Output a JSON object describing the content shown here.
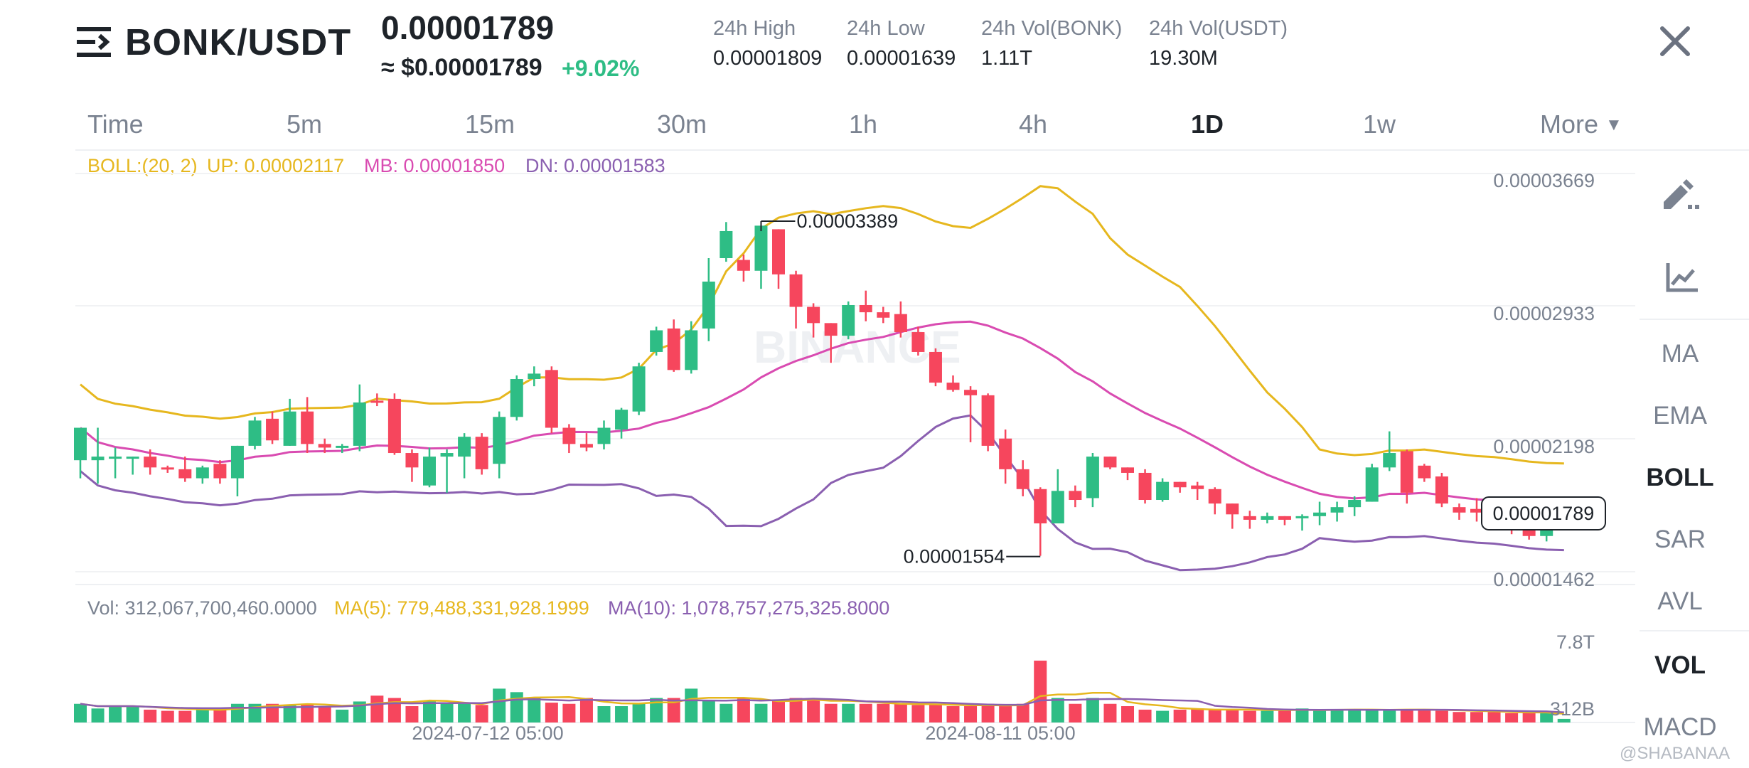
{
  "header": {
    "pair": "BONK/USDT",
    "last_price": "0.00001789",
    "approx_usd": "≈ $0.00001789",
    "change_pct": "+9.02%",
    "stats": [
      {
        "label": "24h High",
        "value": "0.00001809"
      },
      {
        "label": "24h Low",
        "value": "0.00001639"
      },
      {
        "label": "24h Vol(BONK)",
        "value": "1.11T"
      },
      {
        "label": "24h Vol(USDT)",
        "value": "19.30M"
      }
    ]
  },
  "timeframes": [
    "Time",
    "5m",
    "15m",
    "30m",
    "1h",
    "4h",
    "1D",
    "1w"
  ],
  "active_timeframe": "1D",
  "more_label": "More",
  "boll_legend": {
    "params": "BOLL:(20, 2)",
    "up": "UP: 0.00002117",
    "mb": "MB: 0.00001850",
    "dn": "DN: 0.00001583"
  },
  "vol_legend": {
    "vol": "Vol: 312,067,700,460.0000",
    "ma5": "MA(5): 779,488,331,928.1999",
    "ma10": "MA(10): 1,078,757,275,325.8000"
  },
  "side_indicators": [
    "MA",
    "EMA",
    "BOLL",
    "SAR",
    "AVL",
    "VOL",
    "MACD"
  ],
  "active_indicators": [
    "BOLL",
    "VOL"
  ],
  "watermark": "BINANCE",
  "credit": "@SHABANAA",
  "colors": {
    "up": "#2ebd85",
    "down": "#f6465d",
    "boll_up": "#e6b71e",
    "boll_mb": "#d94bb1",
    "boll_dn": "#8a5fb0",
    "ma5": "#e6b71e",
    "ma10": "#8a5fb0"
  },
  "chart_data": {
    "type": "candlestick",
    "y_ticks": [
      "0.00003669",
      "0.00002933",
      "0.00002198",
      "0.00001462"
    ],
    "ylim": [
      1.462e-05,
      3.669e-05
    ],
    "x_ticks": [
      "2024-07-12 05:00",
      "2024-08-11 05:00"
    ],
    "high_annotation": "0.00003389",
    "low_annotation": "0.00001554",
    "last_price_label": "0.00001789",
    "vol_ticks": [
      "7.8T",
      "312B"
    ],
    "vol_ylim": [
      0,
      7800000000000.0
    ],
    "candles": [
      [
        2.08,
        2.26,
        1.98,
        2.26
      ],
      [
        2.08,
        2.1,
        1.95,
        2.26
      ],
      [
        2.09,
        2.1,
        1.98,
        2.15
      ],
      [
        2.1,
        2.1,
        2.0,
        2.1
      ],
      [
        2.1,
        2.04,
        2.0,
        2.14
      ],
      [
        2.04,
        2.03,
        2.01,
        2.05
      ],
      [
        2.03,
        1.98,
        1.96,
        2.1
      ],
      [
        1.98,
        2.04,
        1.95,
        2.05
      ],
      [
        2.06,
        1.98,
        1.95,
        2.08
      ],
      [
        1.98,
        2.16,
        1.88,
        2.16
      ],
      [
        2.16,
        2.3,
        2.14,
        2.32
      ],
      [
        2.31,
        2.19,
        2.17,
        2.35
      ],
      [
        2.16,
        2.35,
        2.16,
        2.42
      ],
      [
        2.35,
        2.17,
        2.12,
        2.43
      ],
      [
        2.17,
        2.15,
        2.12,
        2.2
      ],
      [
        2.15,
        2.16,
        2.12,
        2.17
      ],
      [
        2.16,
        2.4,
        2.13,
        2.5
      ],
      [
        2.41,
        2.4,
        2.38,
        2.45
      ],
      [
        2.42,
        2.12,
        2.11,
        2.45
      ],
      [
        2.12,
        2.04,
        1.96,
        2.14
      ],
      [
        1.94,
        2.1,
        1.93,
        2.15
      ],
      [
        2.1,
        2.12,
        1.9,
        2.14
      ],
      [
        2.1,
        2.21,
        1.98,
        2.23
      ],
      [
        2.21,
        2.03,
        2.0,
        2.23
      ],
      [
        2.06,
        2.32,
        1.98,
        2.35
      ],
      [
        2.32,
        2.53,
        2.3,
        2.55
      ],
      [
        2.53,
        2.56,
        2.49,
        2.6
      ],
      [
        2.58,
        2.26,
        2.23,
        2.6
      ],
      [
        2.26,
        2.17,
        2.12,
        2.28
      ],
      [
        2.17,
        2.15,
        2.13,
        2.23
      ],
      [
        2.17,
        2.26,
        2.14,
        2.3
      ],
      [
        2.25,
        2.36,
        2.2,
        2.37
      ],
      [
        2.35,
        2.6,
        2.33,
        2.62
      ],
      [
        2.68,
        2.8,
        2.66,
        2.82
      ],
      [
        2.81,
        2.58,
        2.57,
        2.86
      ],
      [
        2.58,
        2.8,
        2.56,
        2.85
      ],
      [
        2.81,
        3.07,
        2.74,
        3.2
      ],
      [
        3.2,
        3.35,
        3.18,
        3.4
      ],
      [
        3.19,
        3.13,
        3.07,
        3.22
      ],
      [
        3.13,
        3.38,
        3.03,
        3.38
      ],
      [
        3.36,
        3.11,
        3.03,
        3.36
      ],
      [
        3.11,
        2.93,
        2.81,
        3.13
      ],
      [
        2.93,
        2.84,
        2.76,
        2.95
      ],
      [
        2.84,
        2.77,
        2.62,
        2.84
      ],
      [
        2.77,
        2.94,
        2.75,
        2.96
      ],
      [
        2.94,
        2.9,
        2.85,
        3.02
      ],
      [
        2.9,
        2.87,
        2.84,
        2.93
      ],
      [
        2.89,
        2.79,
        2.76,
        2.96
      ],
      [
        2.79,
        2.68,
        2.66,
        2.82
      ],
      [
        2.68,
        2.51,
        2.49,
        2.7
      ],
      [
        2.51,
        2.47,
        2.46,
        2.55
      ],
      [
        2.47,
        2.44,
        2.18,
        2.49
      ],
      [
        2.44,
        2.16,
        2.13,
        2.45
      ],
      [
        2.2,
        2.03,
        1.95,
        2.25
      ],
      [
        2.03,
        1.92,
        1.88,
        2.08
      ],
      [
        1.92,
        1.73,
        1.55,
        1.93
      ],
      [
        1.73,
        1.91,
        1.73,
        2.03
      ],
      [
        1.91,
        1.86,
        1.82,
        1.94
      ],
      [
        1.87,
        2.1,
        1.82,
        2.12
      ],
      [
        2.1,
        2.04,
        2.03,
        2.1
      ],
      [
        2.04,
        2.01,
        1.97,
        2.04
      ],
      [
        2.01,
        1.86,
        1.84,
        2.03
      ],
      [
        1.86,
        1.96,
        1.85,
        1.98
      ],
      [
        1.96,
        1.93,
        1.9,
        1.96
      ],
      [
        1.94,
        1.92,
        1.86,
        1.96
      ],
      [
        1.92,
        1.84,
        1.78,
        1.93
      ],
      [
        1.84,
        1.78,
        1.7,
        1.84
      ],
      [
        1.77,
        1.75,
        1.7,
        1.8
      ],
      [
        1.75,
        1.77,
        1.73,
        1.79
      ],
      [
        1.77,
        1.75,
        1.72,
        1.77
      ],
      [
        1.76,
        1.77,
        1.69,
        1.78
      ],
      [
        1.77,
        1.79,
        1.72,
        1.85
      ],
      [
        1.79,
        1.82,
        1.74,
        1.85
      ],
      [
        1.82,
        1.86,
        1.77,
        1.88
      ],
      [
        1.85,
        2.04,
        1.85,
        2.06
      ],
      [
        2.04,
        2.12,
        2.02,
        2.24
      ],
      [
        2.13,
        1.9,
        1.84,
        2.14
      ],
      [
        2.05,
        1.98,
        1.96,
        2.06
      ],
      [
        1.99,
        1.84,
        1.82,
        2.01
      ],
      [
        1.82,
        1.79,
        1.75,
        1.84
      ],
      [
        1.81,
        1.79,
        1.74,
        1.87
      ],
      [
        1.8,
        1.75,
        1.71,
        1.81
      ],
      [
        1.75,
        1.73,
        1.67,
        1.76
      ],
      [
        1.73,
        1.66,
        1.64,
        1.77
      ],
      [
        1.66,
        1.76,
        1.63,
        1.77
      ],
      [
        1.77,
        1.79,
        1.76,
        1.81
      ]
    ],
    "volumes_t": [
      1.6,
      1.2,
      1.4,
      1.4,
      1.1,
      1.0,
      1.0,
      1.1,
      1.2,
      1.6,
      1.6,
      1.6,
      1.5,
      1.6,
      1.4,
      1.1,
      1.8,
      2.3,
      2.1,
      1.4,
      1.8,
      1.6,
      1.6,
      1.5,
      2.9,
      2.6,
      2.1,
      1.7,
      1.6,
      2.1,
      1.4,
      1.4,
      1.6,
      2.1,
      2.1,
      2.9,
      1.9,
      1.6,
      2.1,
      1.6,
      1.9,
      2.1,
      2.1,
      1.6,
      1.6,
      1.6,
      1.6,
      1.6,
      1.5,
      1.5,
      1.4,
      1.4,
      1.6,
      1.4,
      1.6,
      5.3,
      2.1,
      1.6,
      2.1,
      1.6,
      1.4,
      1.1,
      1.0,
      1.1,
      1.2,
      1.1,
      1.1,
      1.0,
      1.0,
      1.1,
      1.2,
      1.0,
      1.1,
      1.1,
      1.1,
      1.1,
      1.1,
      1.1,
      1.0,
      0.9,
      0.9,
      0.9,
      0.8,
      0.8,
      0.9,
      0.31
    ]
  }
}
